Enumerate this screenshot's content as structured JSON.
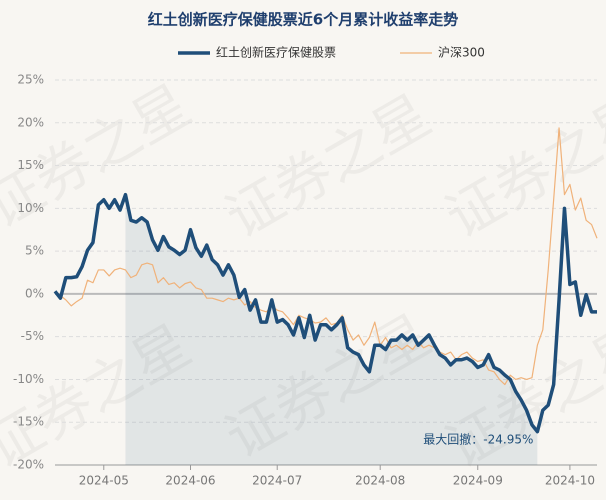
{
  "chart_data": {
    "type": "line",
    "title": "红土创新医疗保健股票近6个月累计收益率走势",
    "watermark": "证券之星",
    "annotation": "最大回撤：-24.95%",
    "categories": [
      null,
      null,
      null,
      null,
      null,
      null,
      null,
      null,
      null,
      "2024-05",
      null,
      null,
      null,
      null,
      null,
      null,
      null,
      null,
      null,
      null,
      null,
      null,
      null,
      null,
      null,
      "2024-06",
      null,
      null,
      null,
      null,
      null,
      null,
      null,
      null,
      null,
      null,
      null,
      null,
      null,
      null,
      null,
      "2024-07",
      null,
      null,
      null,
      null,
      null,
      null,
      null,
      null,
      null,
      null,
      null,
      null,
      null,
      null,
      null,
      null,
      null,
      null,
      "2024-08",
      null,
      null,
      null,
      null,
      null,
      null,
      null,
      null,
      null,
      null,
      null,
      null,
      null,
      null,
      null,
      null,
      null,
      "2024-09",
      null,
      null,
      null,
      null,
      null,
      null,
      null,
      null,
      null,
      null,
      null,
      null,
      null,
      null,
      null,
      null,
      "2024-10",
      null,
      null,
      null,
      null,
      null
    ],
    "series": [
      {
        "name": "红土创新医疗保健股票",
        "color": "#1f4e79",
        "width": 3.5,
        "values": [
          0.3,
          -0.5,
          1.9,
          1.9,
          2,
          3.2,
          5.1,
          6,
          10.4,
          11,
          10,
          11,
          9.8,
          11.6,
          8.6,
          8.4,
          8.9,
          8.4,
          6.3,
          5.1,
          6.7,
          5.5,
          5.1,
          4.6,
          5.1,
          7.5,
          5.4,
          4.4,
          5.7,
          4,
          3.4,
          2.2,
          3.4,
          2.2,
          -0.4,
          0.5,
          -1.9,
          -0.7,
          -3.3,
          -3.3,
          -0.7,
          -3.3,
          -3,
          -3.6,
          -4.8,
          -2.8,
          -5.1,
          -2.5,
          -5.4,
          -3.6,
          -3.6,
          -4.2,
          -3.6,
          -2.8,
          -6.3,
          -6.8,
          -7.1,
          -8.3,
          -9.1,
          -6,
          -6,
          -6.5,
          -5.4,
          -5.4,
          -4.8,
          -5.4,
          -4.8,
          -6,
          -5.4,
          -4.8,
          -6,
          -7.1,
          -7.5,
          -8.3,
          -7.7,
          -7.7,
          -7.5,
          -7.9,
          -8.6,
          -8.3,
          -7.1,
          -8.6,
          -8.9,
          -9.5,
          -10,
          -11.4,
          -12.4,
          -13.6,
          -15.3,
          -16.1,
          -13.6,
          -13,
          -10.6,
          -0.7,
          10,
          1.1,
          1.4,
          -2.5,
          -0.1,
          -2.1,
          -2.1
        ]
      },
      {
        "name": "沪深300",
        "color": "#f0b27a",
        "width": 1.2,
        "values": [
          0.2,
          -0.2,
          -0.7,
          -1.4,
          -0.9,
          -0.5,
          1.6,
          1.3,
          2.8,
          2.8,
          2.1,
          2.8,
          3,
          2.8,
          1.9,
          2.2,
          3.4,
          3.6,
          3.4,
          1.3,
          1.9,
          1.1,
          1.3,
          0.7,
          1.2,
          1.4,
          0.7,
          0.5,
          -0.5,
          -0.5,
          -0.7,
          -0.9,
          -0.5,
          -0.7,
          -0.5,
          -1.3,
          -0.9,
          -1.6,
          -1.9,
          -2.1,
          -1.4,
          -1.9,
          -2.1,
          -2.8,
          -3.6,
          -2.5,
          -2.8,
          -3,
          -3.4,
          -3.3,
          -2.8,
          -3.6,
          -3.4,
          -2.5,
          -4.2,
          -5.4,
          -4.8,
          -6,
          -5.1,
          -3.3,
          -6,
          -5.1,
          -6.3,
          -6,
          -6.5,
          -6,
          -6.5,
          -5.6,
          -6.3,
          -6,
          -6.3,
          -6.8,
          -7.1,
          -6.8,
          -7.7,
          -7.1,
          -6.8,
          -7.5,
          -7.9,
          -7.7,
          -8.9,
          -9.1,
          -10,
          -10.6,
          -9.5,
          -10,
          -9.8,
          -10,
          -9.8,
          -6,
          -4.2,
          2.8,
          11,
          19.4,
          11.6,
          12.8,
          9.8,
          11.2,
          8.6,
          8.1,
          6.5
        ]
      }
    ],
    "ylim": [
      -20,
      25
    ],
    "yticks": [
      {
        "value": -20,
        "label": "-20%"
      },
      {
        "value": -15,
        "label": "-15%"
      },
      {
        "value": -10,
        "label": "-10%"
      },
      {
        "value": -5,
        "label": "-5%"
      },
      {
        "value": 0,
        "label": "0%"
      },
      {
        "value": 5,
        "label": "5%"
      },
      {
        "value": 10,
        "label": "10%"
      },
      {
        "value": 15,
        "label": "15%"
      },
      {
        "value": 20,
        "label": "20%"
      },
      {
        "value": 25,
        "label": "25%"
      }
    ],
    "grid": true
  }
}
